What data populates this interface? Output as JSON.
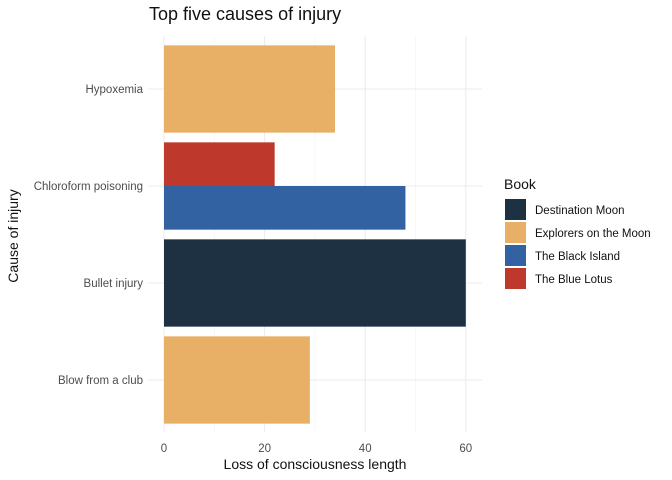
{
  "chart_data": {
    "type": "bar",
    "orientation": "horizontal",
    "position": "dodge",
    "title": "Top five causes of injury",
    "xlabel": "Loss of consciousness length",
    "ylabel": "Cause of injury",
    "xlim": [
      0,
      62
    ],
    "xticks": [
      "0",
      "20",
      "40",
      "60"
    ],
    "grid": true,
    "legend": {
      "title": "Book",
      "placement": "right"
    },
    "series": [
      {
        "name": "Destination Moon",
        "color": "#1d3142"
      },
      {
        "name": "Explorers on the Moon",
        "color": "#e7b066"
      },
      {
        "name": "The Black Island",
        "color": "#3262a2"
      },
      {
        "name": "The Blue Lotus",
        "color": "#bf382c"
      }
    ],
    "categories": [
      {
        "label": "Hypoxemia",
        "bars": [
          {
            "series": "Explorers on the Moon",
            "value": 34
          }
        ]
      },
      {
        "label": "Chloroform poisoning",
        "bars": [
          {
            "series": "The Black Island",
            "value": 48
          },
          {
            "series": "The Blue Lotus",
            "value": 22
          }
        ]
      },
      {
        "label": "Bullet injury",
        "bars": [
          {
            "series": "Destination Moon",
            "value": 60
          }
        ]
      },
      {
        "label": "Blow from a club",
        "bars": [
          {
            "series": "Explorers on the Moon",
            "value": 29
          }
        ]
      }
    ]
  }
}
